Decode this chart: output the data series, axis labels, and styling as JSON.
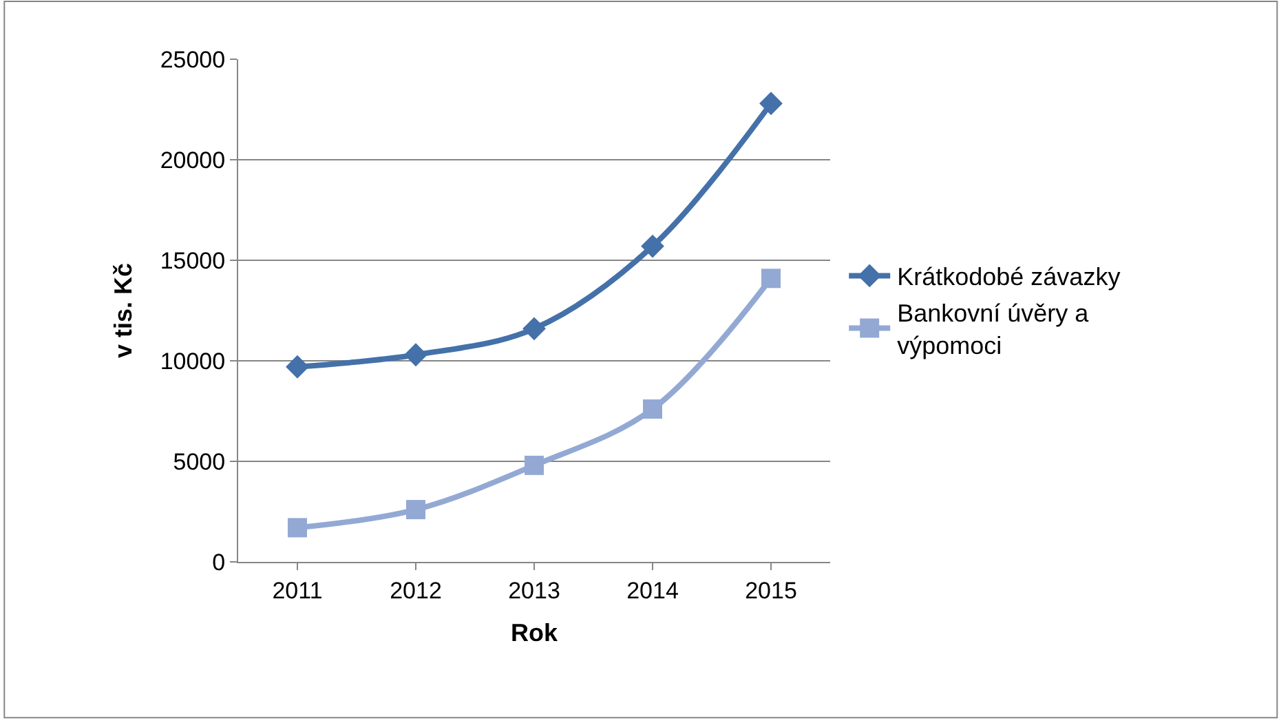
{
  "chart_data": {
    "type": "line",
    "xlabel": "Rok",
    "ylabel": "v tis. Kč",
    "categories": [
      "2011",
      "2012",
      "2013",
      "2014",
      "2015"
    ],
    "series": [
      {
        "name": "Krátkodobé závazky",
        "color": "#4471a9",
        "marker": "diamond",
        "values": [
          9700,
          10300,
          11600,
          15700,
          22800
        ]
      },
      {
        "name": "Bankovní úvěry a výpomoci",
        "color": "#93a9d4",
        "marker": "square",
        "values": [
          1700,
          2600,
          4800,
          7600,
          14100
        ]
      }
    ],
    "ylim": [
      0,
      25000
    ],
    "yticks": [
      0,
      5000,
      10000,
      15000,
      20000,
      25000
    ],
    "grid": "y",
    "legend": "right"
  }
}
